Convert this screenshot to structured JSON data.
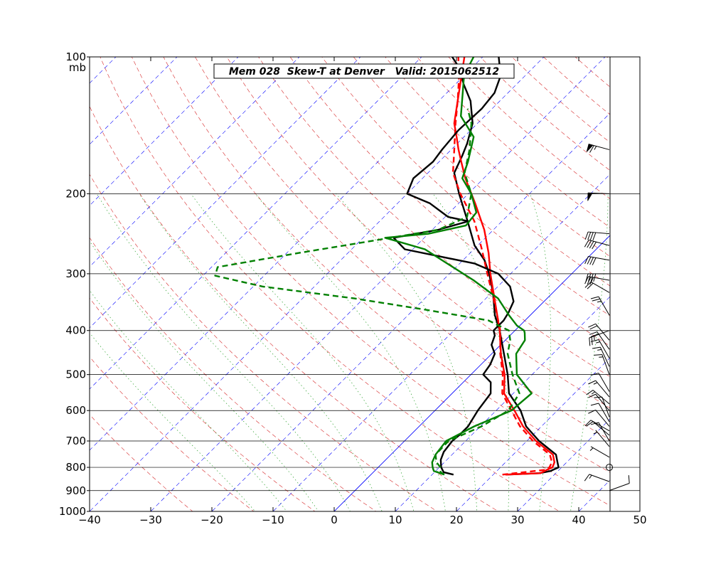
{
  "chart_data": {
    "type": "line",
    "title": "Mem 028  Skew-T at Denver   Valid: 2015062512",
    "pressure_unit": "mb",
    "xlim": [
      -40,
      50
    ],
    "ylim": [
      1000,
      100
    ],
    "x_ticks": [
      -40,
      -30,
      -20,
      -10,
      0,
      10,
      20,
      30,
      40,
      50
    ],
    "x_tick_labels": [
      "−40",
      "−30",
      "−20",
      "−10",
      "0",
      "10",
      "20",
      "30",
      "40",
      "50"
    ],
    "pressure_ticks": [
      1000,
      900,
      800,
      700,
      600,
      500,
      400,
      300,
      200,
      100
    ],
    "pressure_tick_labels": [
      "1000",
      "900",
      "800",
      "700",
      "600",
      "500",
      "400",
      "300",
      "200",
      "100"
    ],
    "colors": {
      "temperature": "#ff0000",
      "dewpoint": "#008000",
      "member": "#000000",
      "dry_adiabat": "#d62728",
      "moist_adiabat": "#2ca02c",
      "isotherm": "#0000ff"
    },
    "isotherms": [
      -110,
      -100,
      -90,
      -80,
      -70,
      -60,
      -50,
      -40,
      -30,
      -20,
      -10,
      10,
      20,
      30,
      40
    ],
    "zero_isotherm": 0,
    "series": [
      {
        "style": "solid-black",
        "role": "member-temperature",
        "points": [
          [
            830,
            22.0
          ],
          [
            824,
            27.3
          ],
          [
            815,
            28.8
          ],
          [
            810,
            29.0
          ],
          [
            800,
            29.5
          ],
          [
            780,
            28.5
          ],
          [
            750,
            27.0
          ],
          [
            700,
            22.0
          ],
          [
            650,
            17.5
          ],
          [
            600,
            14.0
          ],
          [
            550,
            9.3
          ],
          [
            500,
            6.0
          ],
          [
            450,
            2.0
          ],
          [
            400,
            -2.5
          ],
          [
            370,
            -5.8
          ],
          [
            330,
            -9.8
          ],
          [
            300,
            -13.5
          ],
          [
            280,
            -16.5
          ],
          [
            260,
            -20.5
          ],
          [
            230,
            -25.6
          ],
          [
            200,
            -31.5
          ],
          [
            180,
            -35.7
          ],
          [
            165,
            -37.2
          ],
          [
            155,
            -38.4
          ],
          [
            140,
            -40.8
          ],
          [
            125,
            -44.8
          ],
          [
            115,
            -48.6
          ],
          [
            105,
            -52.4
          ],
          [
            100,
            -55.0
          ]
        ]
      },
      {
        "style": "solid-red",
        "role": "temperature",
        "points": [
          [
            830,
            22.0
          ],
          [
            824,
            27.5
          ],
          [
            810,
            28.0
          ],
          [
            800,
            28.5
          ],
          [
            780,
            28.0
          ],
          [
            750,
            26.5
          ],
          [
            700,
            21.5
          ],
          [
            650,
            17.0
          ],
          [
            600,
            13.0
          ],
          [
            550,
            8.5
          ],
          [
            500,
            5.5
          ],
          [
            450,
            1.5
          ],
          [
            400,
            -2.5
          ],
          [
            350,
            -7.5
          ],
          [
            300,
            -13.3
          ],
          [
            270,
            -17.0
          ],
          [
            240,
            -21.5
          ],
          [
            210,
            -27.3
          ],
          [
            185,
            -33.0
          ],
          [
            170,
            -36.4
          ],
          [
            160,
            -38.8
          ],
          [
            150,
            -41.2
          ],
          [
            140,
            -43.8
          ],
          [
            125,
            -46.9
          ],
          [
            110,
            -50.4
          ],
          [
            100,
            -53.0
          ]
        ]
      },
      {
        "style": "dashed-red",
        "role": "temperature-mean",
        "points": [
          [
            830,
            21.5
          ],
          [
            810,
            27.8
          ],
          [
            800,
            28.0
          ],
          [
            780,
            27.6
          ],
          [
            750,
            26.0
          ],
          [
            700,
            21.0
          ],
          [
            650,
            16.5
          ],
          [
            600,
            12.5
          ],
          [
            550,
            8.2
          ],
          [
            500,
            5.2
          ],
          [
            450,
            1.4
          ],
          [
            400,
            -2.4
          ],
          [
            350,
            -7.6
          ],
          [
            300,
            -13.8
          ],
          [
            265,
            -18.7
          ],
          [
            230,
            -24.5
          ],
          [
            200,
            -31.3
          ],
          [
            180,
            -35.9
          ],
          [
            160,
            -39.5
          ],
          [
            140,
            -43.6
          ],
          [
            125,
            -46.9
          ],
          [
            110,
            -50.8
          ],
          [
            100,
            -54.0
          ]
        ]
      },
      {
        "style": "solid-black",
        "role": "member-dewpoint",
        "points": [
          [
            830,
            13.5
          ],
          [
            820,
            11.5
          ],
          [
            800,
            10.3
          ],
          [
            770,
            9.0
          ],
          [
            740,
            8.2
          ],
          [
            700,
            7.8
          ],
          [
            680,
            8.0
          ],
          [
            650,
            8.0
          ],
          [
            600,
            7.0
          ],
          [
            550,
            6.3
          ],
          [
            520,
            4.5
          ],
          [
            500,
            2.0
          ],
          [
            475,
            1.5
          ],
          [
            450,
            0.5
          ],
          [
            430,
            -1.5
          ],
          [
            410,
            -2.5
          ],
          [
            400,
            -3.5
          ],
          [
            380,
            -3.5
          ],
          [
            365,
            -4.0
          ],
          [
            345,
            -5.0
          ],
          [
            320,
            -8.0
          ],
          [
            300,
            -12.0
          ],
          [
            285,
            -17.5
          ],
          [
            265,
            -31.3
          ],
          [
            250,
            -35.0
          ],
          [
            240,
            -29.0
          ],
          [
            230,
            -25.5
          ],
          [
            225,
            -29.5
          ],
          [
            210,
            -34.7
          ],
          [
            200,
            -40.0
          ],
          [
            185,
            -41.5
          ],
          [
            170,
            -41.0
          ],
          [
            160,
            -41.5
          ],
          [
            145,
            -42.0
          ],
          [
            130,
            -41.7
          ],
          [
            120,
            -42.2
          ],
          [
            110,
            -44.0
          ],
          [
            100,
            -47.4
          ]
        ]
      },
      {
        "style": "solid-green",
        "role": "dewpoint",
        "points": [
          [
            830,
            12.0
          ],
          [
            815,
            9.7
          ],
          [
            800,
            8.9
          ],
          [
            780,
            8.0
          ],
          [
            750,
            7.3
          ],
          [
            700,
            6.8
          ],
          [
            650,
            9.0
          ],
          [
            600,
            12.5
          ],
          [
            550,
            13.0
          ],
          [
            500,
            7.5
          ],
          [
            450,
            4.0
          ],
          [
            420,
            3.2
          ],
          [
            405,
            2.0
          ],
          [
            400,
            1.5
          ],
          [
            390,
            -0.5
          ],
          [
            370,
            -3.5
          ],
          [
            340,
            -8.0
          ],
          [
            310,
            -15.0
          ],
          [
            285,
            -22.0
          ],
          [
            265,
            -28.0
          ],
          [
            250,
            -36.4
          ],
          [
            245,
            -30.0
          ],
          [
            235,
            -25.2
          ],
          [
            220,
            -25.6
          ],
          [
            200,
            -29.5
          ],
          [
            185,
            -33.5
          ],
          [
            170,
            -35.3
          ],
          [
            150,
            -38.4
          ],
          [
            135,
            -43.9
          ],
          [
            120,
            -47.4
          ],
          [
            110,
            -50.0
          ],
          [
            100,
            -51.5
          ]
        ]
      },
      {
        "style": "dashed-green",
        "role": "dewpoint-mean",
        "points": [
          [
            830,
            12.0
          ],
          [
            820,
            11.0
          ],
          [
            800,
            10.2
          ],
          [
            780,
            8.7
          ],
          [
            750,
            7.3
          ],
          [
            700,
            7.2
          ],
          [
            650,
            10.2
          ],
          [
            600,
            12.0
          ],
          [
            550,
            11.0
          ],
          [
            500,
            6.8
          ],
          [
            450,
            2.6
          ],
          [
            420,
            0.8
          ],
          [
            400,
            -1.0
          ],
          [
            380,
            -6.0
          ],
          [
            360,
            -18.0
          ],
          [
            340,
            -31.5
          ],
          [
            320,
            -48.5
          ],
          [
            303,
            -58.0
          ],
          [
            290,
            -59.0
          ],
          [
            270,
            -48.0
          ],
          [
            255,
            -38.7
          ],
          [
            240,
            -29.0
          ],
          [
            225,
            -26.4
          ],
          [
            200,
            -29.5
          ],
          [
            180,
            -34.0
          ],
          [
            160,
            -37.0
          ],
          [
            140,
            -41.0
          ],
          [
            130,
            -44.0
          ]
        ]
      }
    ],
    "wind_barbs": {
      "units": "knots",
      "calm_pressure": 800,
      "barbs": [
        {
          "p": 900,
          "speed": 10,
          "dir": 70
        },
        {
          "p": 860,
          "speed": 15,
          "dir": 290
        },
        {
          "p": 760,
          "speed": 5,
          "dir": 300
        },
        {
          "p": 720,
          "speed": 5,
          "dir": 320
        },
        {
          "p": 700,
          "speed": 10,
          "dir": 330
        },
        {
          "p": 680,
          "speed": 10,
          "dir": 310
        },
        {
          "p": 665,
          "speed": 10,
          "dir": 300
        },
        {
          "p": 650,
          "speed": 10,
          "dir": 320
        },
        {
          "p": 635,
          "speed": 10,
          "dir": 330
        },
        {
          "p": 620,
          "speed": 10,
          "dir": 340
        },
        {
          "p": 600,
          "speed": 10,
          "dir": 320
        },
        {
          "p": 580,
          "speed": 15,
          "dir": 310
        },
        {
          "p": 560,
          "speed": 15,
          "dir": 320
        },
        {
          "p": 545,
          "speed": 10,
          "dir": 330
        },
        {
          "p": 500,
          "speed": 15,
          "dir": 340
        },
        {
          "p": 480,
          "speed": 15,
          "dir": 335
        },
        {
          "p": 460,
          "speed": 15,
          "dir": 330
        },
        {
          "p": 440,
          "speed": 20,
          "dir": 325
        },
        {
          "p": 420,
          "speed": 20,
          "dir": 320
        },
        {
          "p": 400,
          "speed": 25,
          "dir": 250
        },
        {
          "p": 370,
          "speed": 25,
          "dir": 330
        },
        {
          "p": 330,
          "speed": 20,
          "dir": 300
        },
        {
          "p": 310,
          "speed": 30,
          "dir": 280
        },
        {
          "p": 300,
          "speed": 40,
          "dir": 270
        },
        {
          "p": 280,
          "speed": 40,
          "dir": 280
        },
        {
          "p": 260,
          "speed": 40,
          "dir": 285
        },
        {
          "p": 245,
          "speed": 40,
          "dir": 275
        },
        {
          "p": 200,
          "speed": 50,
          "dir": 272
        },
        {
          "p": 160,
          "speed": 65,
          "dir": 285
        }
      ]
    }
  }
}
